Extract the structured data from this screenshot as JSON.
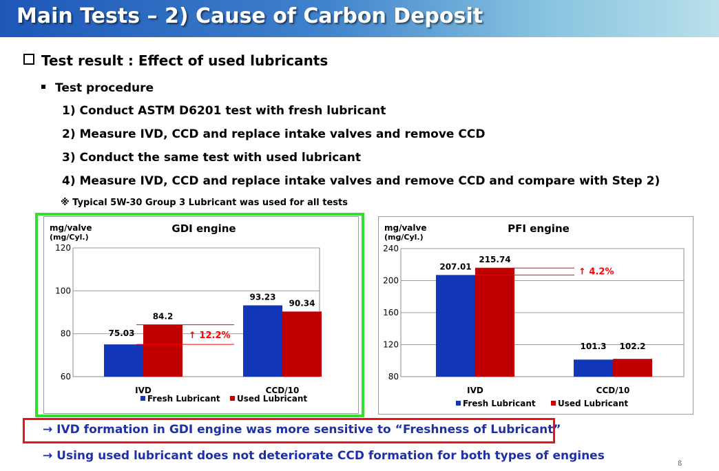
{
  "slide": {
    "title": "Main Tests – 2) Cause of Carbon Deposit",
    "heading": "Test result : Effect of used lubricants",
    "sub_heading": "Test procedure",
    "steps": [
      "1) Conduct ASTM D6201 test with fresh lubricant",
      "2) Measure IVD, CCD and replace intake valves and remove CCD",
      "3) Conduct the same test with used lubricant",
      "4) Measure IVD, CCD and replace intake valves and remove CCD and compare with Step 2)"
    ],
    "note": "※ Typical 5W-30 Group 3 Lubricant was used for all tests",
    "conclusions": [
      "→ IVD formation in GDI engine was more sensitive to “Freshness of Lubricant”",
      "→ Using used lubricant does not deteriorate CCD formation for both types of engines"
    ],
    "logo_glyph": "ß"
  },
  "colors": {
    "fresh": "#1236b8",
    "used": "#c00000",
    "annotation": "#ff0000",
    "green_frame": "#2fe02f",
    "red_frame": "#ee1111",
    "conclusion_text": "#1f2fa8"
  },
  "chart_data": [
    {
      "type": "bar",
      "title": "GDI engine",
      "ylabel": "mg/valve",
      "ylabel2": "(mg/Cyl.)",
      "categories": [
        "IVD",
        "CCD/10"
      ],
      "series": [
        {
          "name": "Fresh Lubricant",
          "values": [
            75.03,
            93.23
          ]
        },
        {
          "name": "Used Lubricant",
          "values": [
            84.2,
            90.34
          ]
        }
      ],
      "value_labels": [
        [
          "75.03",
          "93.23"
        ],
        [
          "84.2",
          "90.34"
        ]
      ],
      "ylim": [
        60,
        120
      ],
      "yticks": [
        60,
        80,
        100,
        120
      ],
      "grid": true,
      "legend": "bottom",
      "annotation": "↑ 12.2%"
    },
    {
      "type": "bar",
      "title": "PFI engine",
      "ylabel": "mg/valve",
      "ylabel2": "(mg/Cyl.)",
      "categories": [
        "IVD",
        "CCD/10"
      ],
      "series": [
        {
          "name": "Fresh Lubricant",
          "values": [
            207.01,
            101.3
          ]
        },
        {
          "name": "Used Lubricant",
          "values": [
            215.74,
            102.2
          ]
        }
      ],
      "value_labels": [
        [
          "207.01",
          "101.3"
        ],
        [
          "215.74",
          "102.2"
        ]
      ],
      "ylim": [
        80,
        240
      ],
      "yticks": [
        80,
        120,
        160,
        200,
        240
      ],
      "grid": true,
      "legend": "bottom",
      "annotation": "↑ 4.2%"
    }
  ]
}
